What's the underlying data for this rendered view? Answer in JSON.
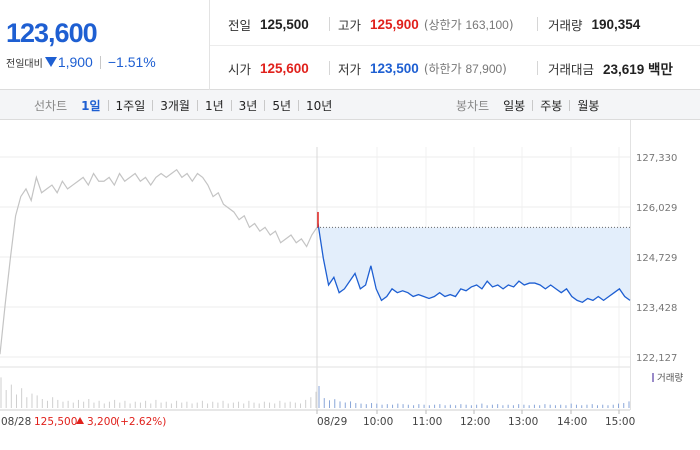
{
  "stock": {
    "current_price": "123,600",
    "change_label": "전일대비",
    "change_amount": "1,900",
    "change_percent": "−1.51%"
  },
  "info": {
    "prev_close": {
      "label": "전일",
      "value": "125,500"
    },
    "high": {
      "label": "고가",
      "value": "125,900",
      "sub_label": "상한가",
      "sub_value": "163,100"
    },
    "volume": {
      "label": "거래량",
      "value": "190,354"
    },
    "open": {
      "label": "시가",
      "value": "125,600"
    },
    "low": {
      "label": "저가",
      "value": "123,500",
      "sub_label": "하한가",
      "sub_value": "87,900"
    },
    "trade_value": {
      "label": "거래대금",
      "value": "23,619 백만"
    }
  },
  "toolbar": {
    "line_label": "선차트",
    "line_periods": [
      "1일",
      "1주일",
      "3개월",
      "1년",
      "3년",
      "5년",
      "10년"
    ],
    "line_active": 0,
    "candle_label": "봉차트",
    "candle_periods": [
      "일봉",
      "주봉",
      "월봉"
    ]
  },
  "colors": {
    "up": "#e0211c",
    "down": "#1e5fd2",
    "prev_day_line": "#c4c4c4",
    "area_fill": "#e3eefb"
  },
  "chart_data": {
    "type": "line",
    "ylim": [
      122127,
      127330
    ],
    "yticks": [
      "127,330",
      "126,029",
      "124,729",
      "123,428",
      "122,127"
    ],
    "reference_price": 125500,
    "x_labels": [
      "08/29",
      "10:00",
      "11:00",
      "12:00",
      "13:00",
      "14:00",
      "15:00"
    ],
    "prev_day_footer": {
      "date": "08/28",
      "price": "125,500",
      "change": "3,200",
      "pct": "(+2.62%)"
    },
    "volume_legend": "거래량",
    "series": [
      {
        "key": "prev_day",
        "values": [
          122200,
          123500,
          124700,
          125800,
          126300,
          126500,
          126200,
          126800,
          126400,
          126500,
          126600,
          126400,
          126700,
          126500,
          126600,
          126700,
          126800,
          126600,
          126900,
          126700,
          126700,
          126800,
          126600,
          126900,
          126700,
          126800,
          126900,
          126700,
          126800,
          126600,
          126800,
          126900,
          126800,
          126900,
          127000,
          126800,
          126900,
          126700,
          126900,
          126800,
          126600,
          126300,
          126400,
          126100,
          126000,
          125900,
          125700,
          125800,
          125500,
          125600,
          125400,
          125500,
          125300,
          125400,
          125100,
          125200,
          125300,
          125100,
          125200,
          125000,
          125300,
          125500
        ]
      },
      {
        "key": "today",
        "values": [
          125600,
          124700,
          124000,
          124200,
          123800,
          123900,
          124100,
          124300,
          123900,
          124000,
          124500,
          123900,
          123600,
          123700,
          123900,
          123800,
          123850,
          123800,
          123700,
          123750,
          123700,
          123650,
          123700,
          123800,
          123700,
          123750,
          123700,
          123900,
          123850,
          123950,
          124000,
          123900,
          124100,
          123950,
          124000,
          123900,
          124000,
          123950,
          124100,
          124000,
          124050,
          124050,
          124000,
          123900,
          124000,
          123900,
          123800,
          123900,
          123700,
          123600,
          123550,
          123650,
          123600,
          123700,
          123600,
          123700,
          123800,
          123900,
          123700,
          123600
        ]
      }
    ],
    "prev_day_volume": [
      34,
      20,
      26,
      15,
      22,
      12,
      16,
      14,
      10,
      8,
      12,
      9,
      7,
      8,
      6,
      9,
      7,
      10,
      6,
      8,
      5,
      7,
      9,
      6,
      8,
      5,
      7,
      6,
      8,
      5,
      9,
      6,
      7,
      5,
      8,
      6,
      7,
      5,
      6,
      8,
      5,
      7,
      6,
      8,
      5,
      6,
      7,
      5,
      8,
      6,
      5,
      7,
      6,
      5,
      8,
      6,
      7,
      6,
      5,
      9,
      12,
      18
    ],
    "today_volume": [
      40,
      18,
      14,
      16,
      12,
      10,
      12,
      9,
      8,
      7,
      9,
      8,
      6,
      7,
      6,
      8,
      7,
      6,
      5,
      7,
      6,
      5,
      6,
      7,
      5,
      6,
      5,
      7,
      6,
      5,
      6,
      8,
      5,
      6,
      7,
      5,
      6,
      5,
      7,
      6,
      5,
      6,
      5,
      7,
      6,
      5,
      6,
      5,
      8,
      6,
      5,
      6,
      7,
      5,
      6,
      5,
      6,
      8,
      9,
      12
    ]
  }
}
